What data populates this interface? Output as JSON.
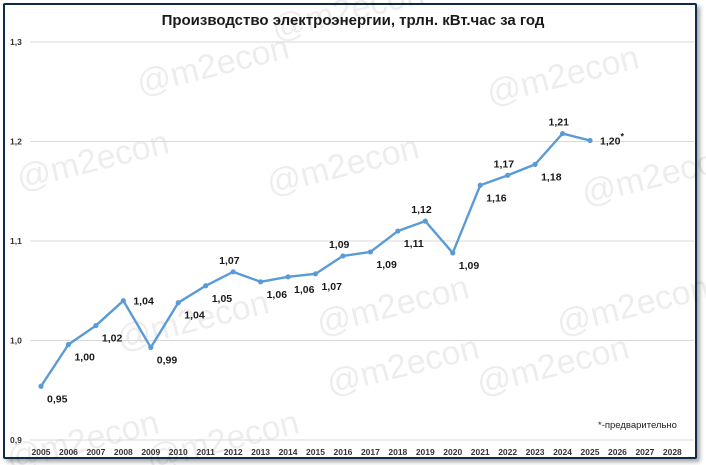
{
  "watermark": "@m2econ",
  "note": "*-предварительно",
  "chart_data": {
    "type": "line",
    "title": "Производство электроэнергии, трлн. кВт.час за год",
    "xlabel": "",
    "ylabel": "",
    "ylim": [
      0.9,
      1.3
    ],
    "yticks": [
      "0,9",
      "1,0",
      "1,1",
      "1,2",
      "1,3"
    ],
    "ytick_values": [
      0.9,
      1.0,
      1.1,
      1.2,
      1.3
    ],
    "x_ticks": [
      "2005",
      "2006",
      "2007",
      "2008",
      "2009",
      "2010",
      "2011",
      "2012",
      "2013",
      "2014",
      "2015",
      "2016",
      "2017",
      "2018",
      "2019",
      "2020",
      "2021",
      "2022",
      "2023",
      "2024",
      "2025",
      "2026",
      "2027",
      "2028"
    ],
    "grid": true,
    "series_color": "#5b9bd5",
    "series": [
      {
        "x": [
          "2005",
          "2006",
          "2007",
          "2008",
          "2009",
          "2010",
          "2011",
          "2012",
          "2013",
          "2014",
          "2015",
          "2016",
          "2017",
          "2018",
          "2019",
          "2020",
          "2021",
          "2022",
          "2023",
          "2024",
          "2025"
        ],
        "values": [
          0.954,
          0.996,
          1.015,
          1.04,
          0.993,
          1.038,
          1.055,
          1.069,
          1.059,
          1.064,
          1.067,
          1.085,
          1.089,
          1.11,
          1.12,
          1.088,
          1.156,
          1.166,
          1.177,
          1.208,
          1.201
        ],
        "labels": [
          "0,95",
          "1,00",
          "1,02",
          "1,04",
          "0,99",
          "1,04",
          "1,05",
          "1,07",
          "1,06",
          "1,06",
          "1,07",
          "1,09",
          "1,09",
          "1,11",
          "1,12",
          "1,09",
          "1,16",
          "1,17",
          "1,18",
          "1,21",
          "1,20"
        ],
        "label_pos": [
          "below-right",
          "below-right",
          "below-right",
          "right",
          "below-right",
          "below-right",
          "below-right",
          "above",
          "below-right",
          "below-right",
          "below-right",
          "above",
          "below-right",
          "below-right",
          "above",
          "below-right",
          "below-right",
          "above",
          "below-right",
          "above",
          "right"
        ],
        "label_suffix": {
          "2025": "*"
        }
      }
    ]
  }
}
